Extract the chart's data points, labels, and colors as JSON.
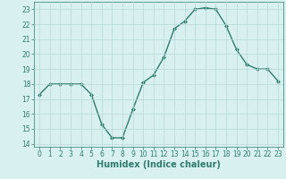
{
  "x": [
    0,
    1,
    2,
    3,
    4,
    5,
    6,
    7,
    8,
    9,
    10,
    11,
    12,
    13,
    14,
    15,
    16,
    17,
    18,
    19,
    20,
    21,
    22,
    23
  ],
  "y": [
    17.3,
    18.0,
    18.0,
    18.0,
    18.0,
    17.3,
    15.3,
    14.4,
    14.4,
    16.3,
    18.1,
    18.6,
    19.8,
    21.7,
    22.2,
    23.0,
    23.1,
    23.0,
    21.9,
    20.3,
    19.3,
    19.0,
    19.0,
    18.2
  ],
  "line_color": "#2e7d6e",
  "marker": "D",
  "marker_size": 2.0,
  "bg_color": "#d9f0f0",
  "grid_color": "#b8d8d8",
  "xlabel": "Humidex (Indice chaleur)",
  "ylim": [
    13.8,
    23.5
  ],
  "xlim": [
    -0.5,
    23.5
  ],
  "yticks": [
    14,
    15,
    16,
    17,
    18,
    19,
    20,
    21,
    22,
    23
  ],
  "xticks": [
    0,
    1,
    2,
    3,
    4,
    5,
    6,
    7,
    8,
    9,
    10,
    11,
    12,
    13,
    14,
    15,
    16,
    17,
    18,
    19,
    20,
    21,
    22,
    23
  ],
  "tick_fontsize": 5.5,
  "xlabel_fontsize": 7.0,
  "line_width": 1.0
}
